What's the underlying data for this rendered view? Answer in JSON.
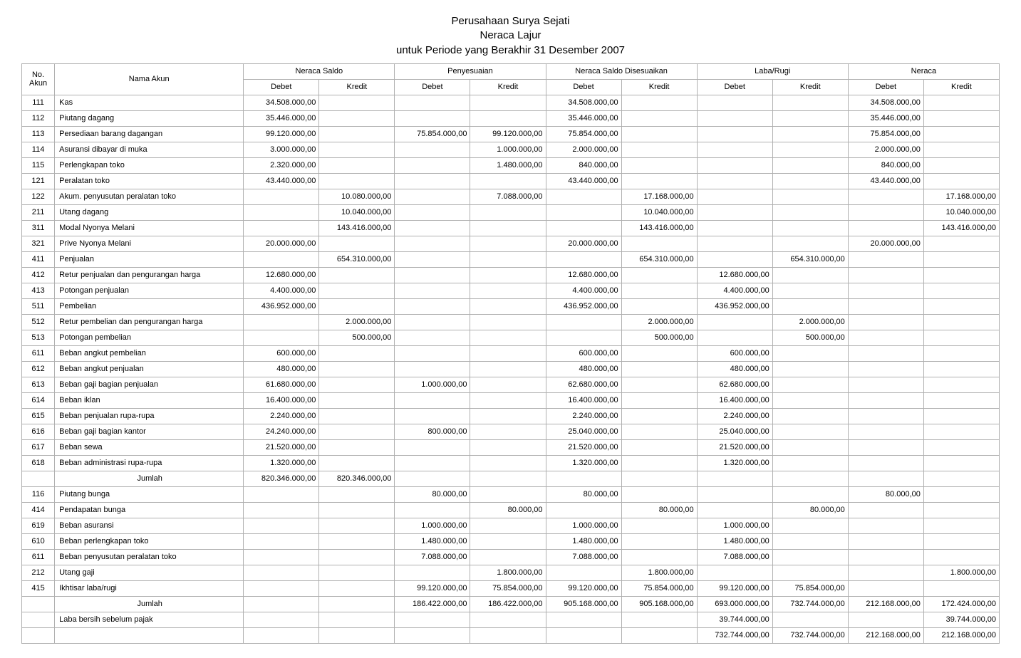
{
  "title": {
    "line1": "Perusahaan Surya Sejati",
    "line2": "Neraca Lajur",
    "line3": "untuk Periode yang Berakhir 31 Desember 2007"
  },
  "columns": {
    "no": "No. Akun",
    "nama": "Nama Akun",
    "groups": [
      "Neraca Saldo",
      "Penyesuaian",
      "Neraca Saldo Disesuaikan",
      "Laba/Rugi",
      "Neraca"
    ],
    "debet": "Debet",
    "kredit": "Kredit"
  },
  "rows": [
    {
      "no": "111",
      "nama": "Kas",
      "c": [
        "34.508.000,00",
        "",
        "",
        "",
        "34.508.000,00",
        "",
        "",
        "",
        "34.508.000,00",
        ""
      ]
    },
    {
      "no": "112",
      "nama": "Piutang dagang",
      "c": [
        "35.446.000,00",
        "",
        "",
        "",
        "35.446.000,00",
        "",
        "",
        "",
        "35.446.000,00",
        ""
      ]
    },
    {
      "no": "113",
      "nama": "Persediaan barang dagangan",
      "c": [
        "99.120.000,00",
        "",
        "75.854.000,00",
        "99.120.000,00",
        "75.854.000,00",
        "",
        "",
        "",
        "75.854.000,00",
        ""
      ]
    },
    {
      "no": "114",
      "nama": "Asuransi dibayar di muka",
      "c": [
        "3.000.000,00",
        "",
        "",
        "1.000.000,00",
        "2.000.000,00",
        "",
        "",
        "",
        "2.000.000,00",
        ""
      ]
    },
    {
      "no": "115",
      "nama": "Perlengkapan toko",
      "c": [
        "2.320.000,00",
        "",
        "",
        "1.480.000,00",
        "840.000,00",
        "",
        "",
        "",
        "840.000,00",
        ""
      ]
    },
    {
      "no": "121",
      "nama": "Peralatan toko",
      "c": [
        "43.440.000,00",
        "",
        "",
        "",
        "43.440.000,00",
        "",
        "",
        "",
        "43.440.000,00",
        ""
      ]
    },
    {
      "no": "122",
      "nama": "Akum. penyusutan peralatan toko",
      "c": [
        "",
        "10.080.000,00",
        "",
        "7.088.000,00",
        "",
        "17.168.000,00",
        "",
        "",
        "",
        "17.168.000,00"
      ]
    },
    {
      "no": "211",
      "nama": "Utang dagang",
      "c": [
        "",
        "10.040.000,00",
        "",
        "",
        "",
        "10.040.000,00",
        "",
        "",
        "",
        "10.040.000,00"
      ]
    },
    {
      "no": "311",
      "nama": "Modal Nyonya Melani",
      "c": [
        "",
        "143.416.000,00",
        "",
        "",
        "",
        "143.416.000,00",
        "",
        "",
        "",
        "143.416.000,00"
      ]
    },
    {
      "no": "321",
      "nama": "Prive Nyonya Melani",
      "c": [
        "20.000.000,00",
        "",
        "",
        "",
        "20.000.000,00",
        "",
        "",
        "",
        "20.000.000,00",
        ""
      ]
    },
    {
      "no": "411",
      "nama": "Penjualan",
      "c": [
        "",
        "654.310.000,00",
        "",
        "",
        "",
        "654.310.000,00",
        "",
        "654.310.000,00",
        "",
        ""
      ]
    },
    {
      "no": "412",
      "nama": "Retur penjualan dan pengurangan harga",
      "c": [
        "12.680.000,00",
        "",
        "",
        "",
        "12.680.000,00",
        "",
        "12.680.000,00",
        "",
        "",
        ""
      ]
    },
    {
      "no": "413",
      "nama": "Potongan penjualan",
      "c": [
        "4.400.000,00",
        "",
        "",
        "",
        "4.400.000,00",
        "",
        "4.400.000,00",
        "",
        "",
        ""
      ]
    },
    {
      "no": "511",
      "nama": "Pembelian",
      "c": [
        "436.952.000,00",
        "",
        "",
        "",
        "436.952.000,00",
        "",
        "436.952.000,00",
        "",
        "",
        ""
      ]
    },
    {
      "no": "512",
      "nama": "Retur pembelian dan pengurangan harga",
      "c": [
        "",
        "2.000.000,00",
        "",
        "",
        "",
        "2.000.000,00",
        "",
        "2.000.000,00",
        "",
        ""
      ]
    },
    {
      "no": "513",
      "nama": "Potongan pembelian",
      "c": [
        "",
        "500.000,00",
        "",
        "",
        "",
        "500.000,00",
        "",
        "500.000,00",
        "",
        ""
      ]
    },
    {
      "no": "611",
      "nama": "Beban angkut pembelian",
      "c": [
        "600.000,00",
        "",
        "",
        "",
        "600.000,00",
        "",
        "600.000,00",
        "",
        "",
        ""
      ]
    },
    {
      "no": "612",
      "nama": "Beban angkut penjualan",
      "c": [
        "480.000,00",
        "",
        "",
        "",
        "480.000,00",
        "",
        "480.000,00",
        "",
        "",
        ""
      ]
    },
    {
      "no": "613",
      "nama": "Beban gaji bagian penjualan",
      "c": [
        "61.680.000,00",
        "",
        "1.000.000,00",
        "",
        "62.680.000,00",
        "",
        "62.680.000,00",
        "",
        "",
        ""
      ]
    },
    {
      "no": "614",
      "nama": "Beban iklan",
      "c": [
        "16.400.000,00",
        "",
        "",
        "",
        "16.400.000,00",
        "",
        "16.400.000,00",
        "",
        "",
        ""
      ]
    },
    {
      "no": "615",
      "nama": "Beban penjualan rupa-rupa",
      "c": [
        "2.240.000,00",
        "",
        "",
        "",
        "2.240.000,00",
        "",
        "2.240.000,00",
        "",
        "",
        ""
      ]
    },
    {
      "no": "616",
      "nama": "Beban gaji bagian kantor",
      "c": [
        "24.240.000,00",
        "",
        "800.000,00",
        "",
        "25.040.000,00",
        "",
        "25.040.000,00",
        "",
        "",
        ""
      ]
    },
    {
      "no": "617",
      "nama": "Beban sewa",
      "c": [
        "21.520.000,00",
        "",
        "",
        "",
        "21.520.000,00",
        "",
        "21.520.000,00",
        "",
        "",
        ""
      ]
    },
    {
      "no": "618",
      "nama": "Beban administrasi rupa-rupa",
      "c": [
        "1.320.000,00",
        "",
        "",
        "",
        "1.320.000,00",
        "",
        "1.320.000,00",
        "",
        "",
        ""
      ]
    },
    {
      "no": "",
      "nama": "Jumlah",
      "center": true,
      "c": [
        "820.346.000,00",
        "820.346.000,00",
        "",
        "",
        "",
        "",
        "",
        "",
        "",
        ""
      ]
    },
    {
      "no": "116",
      "nama": "Piutang bunga",
      "c": [
        "",
        "",
        "80.000,00",
        "",
        "80.000,00",
        "",
        "",
        "",
        "80.000,00",
        ""
      ]
    },
    {
      "no": "414",
      "nama": "Pendapatan bunga",
      "c": [
        "",
        "",
        "",
        "80.000,00",
        "",
        "80.000,00",
        "",
        "80.000,00",
        "",
        ""
      ]
    },
    {
      "no": "619",
      "nama": "Beban asuransi",
      "c": [
        "",
        "",
        "1.000.000,00",
        "",
        "1.000.000,00",
        "",
        "1.000.000,00",
        "",
        "",
        ""
      ]
    },
    {
      "no": "610",
      "nama": "Beban perlengkapan toko",
      "c": [
        "",
        "",
        "1.480.000,00",
        "",
        "1.480.000,00",
        "",
        "1.480.000,00",
        "",
        "",
        ""
      ]
    },
    {
      "no": "611",
      "nama": "Beban penyusutan peralatan toko",
      "c": [
        "",
        "",
        "7.088.000,00",
        "",
        "7.088.000,00",
        "",
        "7.088.000,00",
        "",
        "",
        ""
      ]
    },
    {
      "no": "212",
      "nama": "Utang gaji",
      "c": [
        "",
        "",
        "",
        "1.800.000,00",
        "",
        "1.800.000,00",
        "",
        "",
        "",
        "1.800.000,00"
      ]
    },
    {
      "no": "415",
      "nama": "Ikhtisar laba/rugi",
      "c": [
        "",
        "",
        "99.120.000,00",
        "75.854.000,00",
        "99.120.000,00",
        "75.854.000,00",
        "99.120.000,00",
        "75.854.000,00",
        "",
        ""
      ]
    },
    {
      "no": "",
      "nama": "Jumlah",
      "center": true,
      "c": [
        "",
        "",
        "186.422.000,00",
        "186.422.000,00",
        "905.168.000,00",
        "905.168.000,00",
        "693.000.000,00",
        "732.744.000,00",
        "212.168.000,00",
        "172.424.000,00"
      ]
    },
    {
      "no": "",
      "nama": "Laba bersih sebelum pajak",
      "c": [
        "",
        "",
        "",
        "",
        "",
        "",
        "39.744.000,00",
        "",
        "",
        "39.744.000,00"
      ]
    },
    {
      "no": "",
      "nama": "",
      "c": [
        "",
        "",
        "",
        "",
        "",
        "",
        "732.744.000,00",
        "732.744.000,00",
        "212.168.000,00",
        "212.168.000,00"
      ]
    }
  ]
}
